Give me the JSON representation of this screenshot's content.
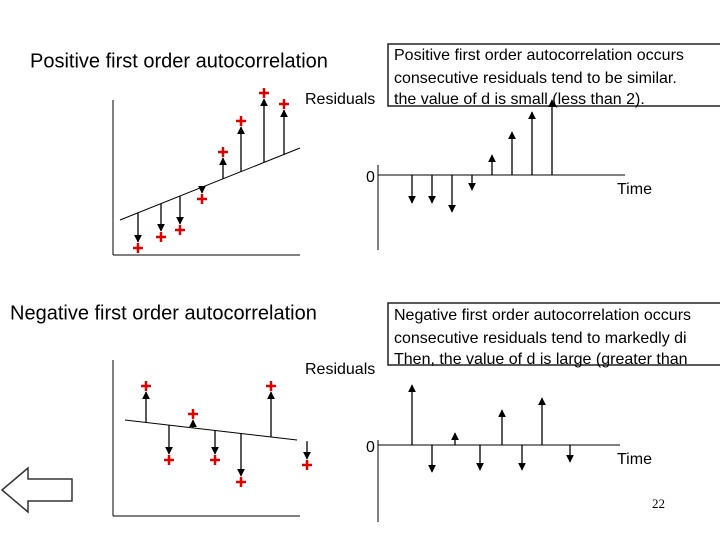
{
  "top": {
    "title": "Positive first order autocorrelation",
    "box_lines": [
      "Positive first order autocorrelation occurs",
      "consecutive residuals tend to be similar.",
      "the value of d is small (less than 2)."
    ],
    "y_label": "Residuals",
    "zero": "0",
    "x_label": "Time"
  },
  "bottom": {
    "title": "Negative first order autocorrelation",
    "box_lines": [
      "Negative first order autocorrelation occurs",
      "consecutive residuals tend to markedly di",
      "Then, the value of d is large (greater than"
    ],
    "y_label": "Residuals",
    "zero": "0",
    "x_label": "Time"
  },
  "page_number": "22"
}
